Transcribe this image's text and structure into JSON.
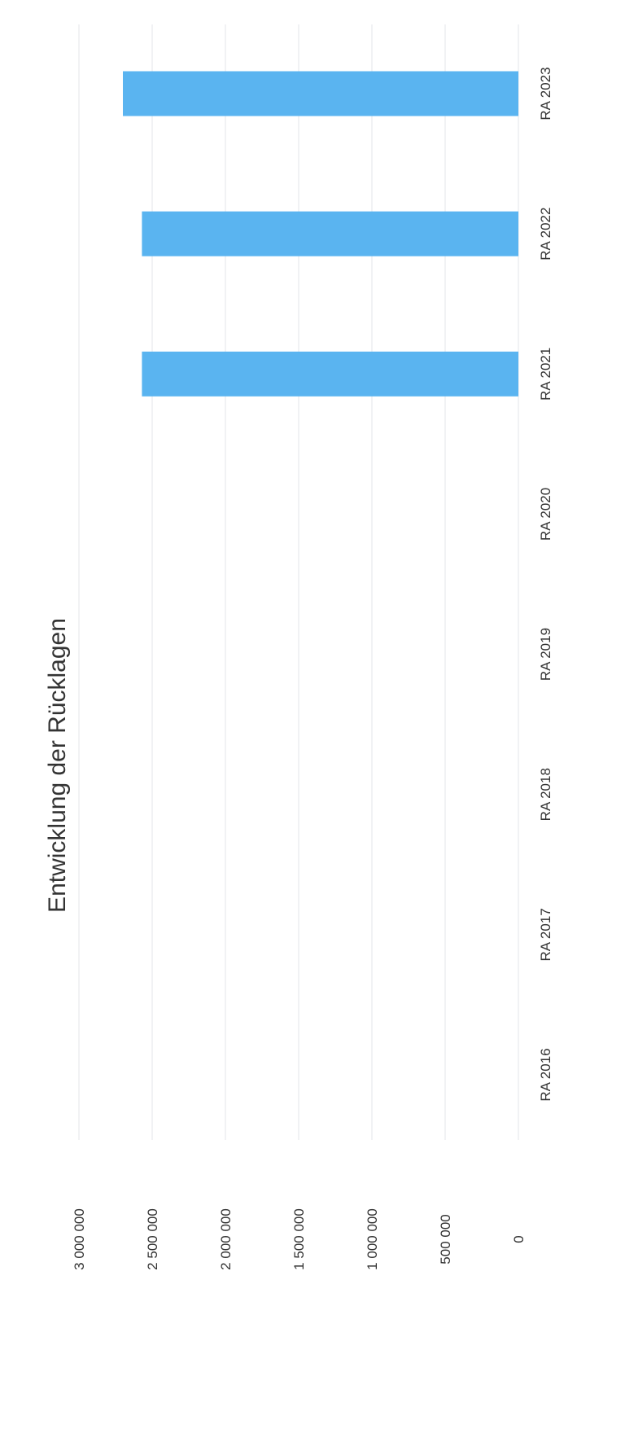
{
  "chart_data": {
    "type": "bar",
    "title": "Entwicklung der Rücklagen",
    "categories": [
      "RA 2016",
      "RA 2017",
      "RA 2018",
      "RA 2019",
      "RA 2020",
      "RA 2021",
      "RA 2022",
      "RA 2023"
    ],
    "values": [
      0,
      0,
      0,
      0,
      0,
      2570000,
      2570000,
      2700000
    ],
    "y_ticks": [
      0,
      500000,
      1000000,
      1500000,
      2000000,
      2500000,
      3000000
    ],
    "y_tick_labels": [
      "0",
      "500 000",
      "1 000 000",
      "1 500 000",
      "2 000 000",
      "2 500 000",
      "3 000 000"
    ],
    "ylim": [
      0,
      3000000
    ],
    "xlabel": "",
    "ylabel": "",
    "grid": true,
    "legend": "none",
    "bar_color": "#5ab4f0",
    "grid_color": "#e3e6ea",
    "orientation": "rotated-90-clockwise"
  }
}
